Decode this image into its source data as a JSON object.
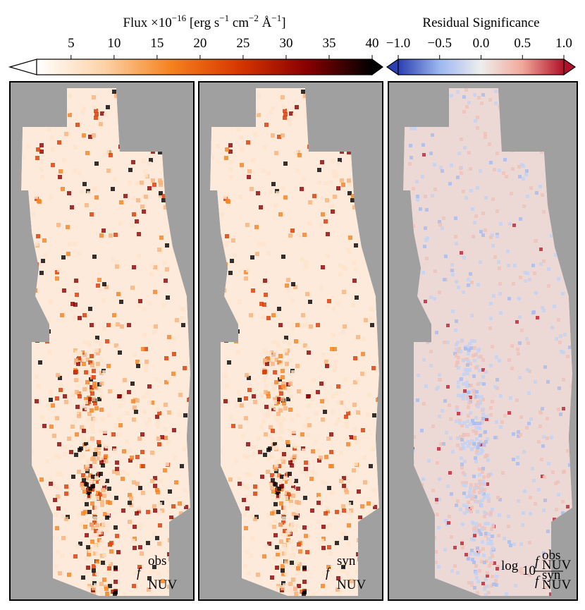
{
  "colorbars": [
    {
      "label_parts": [
        "Flux ×10",
        "−16",
        " [erg s",
        "−1",
        " cm",
        "−2",
        " Å",
        "−1",
        "]"
      ],
      "lim": [
        1,
        40
      ],
      "ticks": [
        5,
        10,
        15,
        20,
        25,
        30,
        35,
        40
      ],
      "colors": [
        "#ffffff",
        "#fcd3a8",
        "#f5821f",
        "#d83800",
        "#8b0000",
        "#000000"
      ]
    },
    {
      "label_parts": [
        "Residual Significance"
      ],
      "lim": [
        -1,
        1
      ],
      "ticks": [
        {
          "value": -1,
          "label": "−1.0"
        },
        {
          "value": -0.5,
          "label": "−0.5"
        },
        {
          "value": 0,
          "label": "0.0"
        },
        0.5,
        {
          "value": 1,
          "label": "1.0"
        }
      ],
      "colors": [
        "#2b3fb0",
        "#9db7f0",
        "#eeeeee",
        "#f0a89a",
        "#b0102a"
      ]
    }
  ],
  "panels": [
    {
      "label": [
        "f",
        "obs",
        "NUV"
      ]
    },
    {
      "label": [
        "f",
        "syn",
        "NUV"
      ]
    },
    {
      "label": [
        "log",
        "10",
        "f",
        "obs",
        "NUV",
        "f",
        "syn",
        "NUV"
      ]
    }
  ]
}
